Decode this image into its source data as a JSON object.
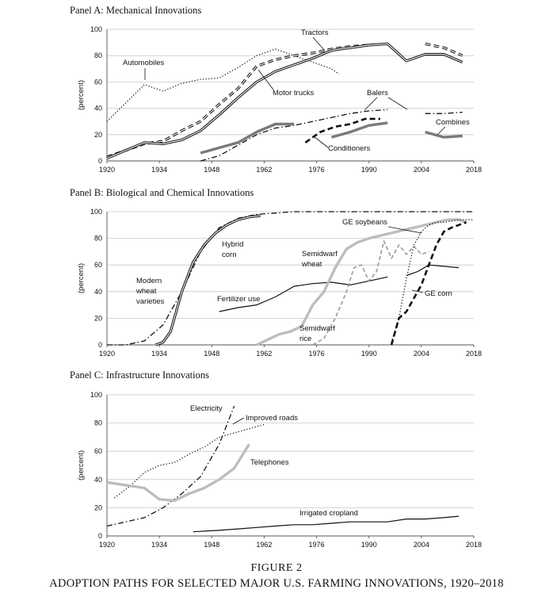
{
  "figure": {
    "label": "FIGURE 2",
    "title": "ADOPTION PATHS FOR SELECTED MAJOR U.S. FARMING INNOVATIONS, 1920–2018"
  },
  "colors": {
    "dark": "#111111",
    "gray": "#7a7a7a",
    "lightgray": "#bdbdbd",
    "midgray": "#9a9a9a"
  },
  "chart_data": [
    {
      "type": "line",
      "title": "Panel A: Mechanical Innovations",
      "ylabel": "(percent)",
      "xlim": [
        1920,
        2018
      ],
      "ylim": [
        0,
        100
      ],
      "xticks": [
        1920,
        1934,
        1948,
        1962,
        1976,
        1990,
        2004,
        2018
      ],
      "yticks": [
        0,
        20,
        40,
        60,
        80,
        100
      ],
      "grid": true,
      "series": [
        {
          "name": "Automobiles",
          "style": "dotted",
          "color": "#111111",
          "x": [
            1920,
            1930,
            1935,
            1940,
            1945,
            1950,
            1955,
            1960,
            1965,
            1970,
            1975,
            1980,
            1982
          ],
          "y": [
            30,
            58,
            53,
            59,
            62,
            63,
            71,
            80,
            85,
            80,
            75,
            70,
            66
          ]
        },
        {
          "name": "Tractors",
          "style": "double-dashed",
          "color": "#111111",
          "x": [
            1920,
            1925,
            1930,
            1935,
            1940,
            1945,
            1950,
            1955,
            1960,
            1965,
            1970,
            1975,
            1980,
            1985,
            1990,
            1995,
            2000,
            2005,
            2010,
            2015
          ],
          "y": [
            3,
            8,
            13,
            15,
            23,
            30,
            43,
            55,
            72,
            77,
            80,
            82,
            85,
            87,
            88,
            null,
            null,
            89,
            86,
            80
          ]
        },
        {
          "name": "Motor trucks",
          "style": "double",
          "color": "#111111",
          "x": [
            1920,
            1925,
            1930,
            1935,
            1940,
            1945,
            1950,
            1955,
            1960,
            1965,
            1970,
            1975,
            1980,
            1985,
            1990,
            1995,
            2000,
            2005,
            2010,
            2015
          ],
          "y": [
            2,
            8,
            14,
            13,
            16,
            23,
            35,
            48,
            60,
            68,
            73,
            78,
            84,
            86,
            88,
            89,
            76,
            81,
            81,
            75
          ]
        },
        {
          "name": "Balers",
          "style": "dashdot",
          "color": "#111111",
          "x": [
            1945,
            1950,
            1955,
            1960,
            1965,
            1970,
            1975,
            1980,
            1985,
            1990,
            1995,
            2000,
            2005,
            2010,
            2015
          ],
          "y": [
            0,
            4,
            12,
            20,
            25,
            27,
            30,
            33,
            36,
            38,
            39,
            null,
            36,
            36,
            37
          ]
        },
        {
          "name": "Combines",
          "style": "thick",
          "color": "#7a7a7a",
          "x": [
            1945,
            1950,
            1955,
            1960,
            1965,
            1970,
            1975,
            1980,
            1985,
            1990,
            1995,
            2000,
            2005,
            2010,
            2015
          ],
          "y": [
            6,
            10,
            14,
            22,
            28,
            28,
            null,
            18,
            22,
            27,
            29,
            null,
            22,
            18,
            19
          ]
        },
        {
          "name": "Conditioners",
          "style": "dashed-thick",
          "color": "#111111",
          "x": [
            1973,
            1977,
            1981,
            1985,
            1989,
            1993
          ],
          "y": [
            14,
            22,
            26,
            28,
            32,
            32
          ]
        }
      ],
      "annotations": [
        "Tractors",
        "Automobiles",
        "Motor trucks",
        "Balers",
        "Combines",
        "Conditioners"
      ]
    },
    {
      "type": "line",
      "title": "Panel B: Biological and Chemical Innovations",
      "ylabel": "(percent)",
      "xlim": [
        1920,
        2018
      ],
      "ylim": [
        0,
        100
      ],
      "xticks": [
        1920,
        1934,
        1948,
        1962,
        1976,
        1990,
        2004,
        2018
      ],
      "yticks": [
        0,
        20,
        40,
        60,
        80,
        100
      ],
      "grid": true,
      "series": [
        {
          "name": "Modern wheat varieties",
          "style": "dashdot",
          "color": "#111111",
          "x": [
            1920,
            1925,
            1930,
            1935,
            1940,
            1945,
            1950,
            1955,
            1960,
            1965,
            1970,
            1980,
            1990,
            2000,
            2010,
            2018
          ],
          "y": [
            0,
            0,
            3,
            15,
            40,
            70,
            88,
            95,
            98,
            99,
            100,
            100,
            100,
            100,
            100,
            100
          ]
        },
        {
          "name": "Hybrid corn",
          "style": "double",
          "color": "#111111",
          "x": [
            1933,
            1935,
            1937,
            1940,
            1943,
            1946,
            1949,
            1952,
            1955,
            1958,
            1961
          ],
          "y": [
            0,
            2,
            10,
            40,
            62,
            75,
            84,
            90,
            94,
            96,
            97
          ]
        },
        {
          "name": "Fertilizer use",
          "style": "solid",
          "color": "#111111",
          "x": [
            1950,
            1955,
            1960,
            1965,
            1970,
            1975,
            1980,
            1985,
            1990,
            1995
          ],
          "y": [
            25,
            28,
            30,
            36,
            44,
            46,
            47,
            45,
            48,
            51
          ]
        },
        {
          "name": "Semidwarf wheat",
          "style": "thick",
          "color": "#bdbdbd",
          "x": [
            1960,
            1963,
            1966,
            1969,
            1972,
            1975,
            1978,
            1981,
            1984,
            1987,
            1990,
            1993,
            1996,
            1999,
            2002,
            2005,
            2008,
            2011,
            2014,
            2016
          ],
          "y": [
            0,
            4,
            8,
            10,
            14,
            30,
            40,
            58,
            72,
            77,
            80,
            82,
            84,
            86,
            88,
            90,
            92,
            94,
            94,
            92
          ]
        },
        {
          "name": "Semidwarf rice",
          "style": "dashed",
          "color": "#9a9a9a",
          "x": [
            1975,
            1978,
            1981,
            1984,
            1986,
            1988,
            1990,
            1992,
            1994,
            1996,
            1998,
            2000,
            2002,
            2004,
            2006
          ],
          "y": [
            0,
            5,
            20,
            40,
            58,
            60,
            48,
            55,
            78,
            65,
            75,
            68,
            74,
            68,
            70
          ]
        },
        {
          "name": "GE soybeans",
          "style": "dotted",
          "color": "#111111",
          "x": [
            1996,
            1998,
            2000,
            2002,
            2004,
            2006,
            2008,
            2010,
            2012,
            2014,
            2016,
            2018
          ],
          "y": [
            2,
            20,
            50,
            75,
            85,
            90,
            92,
            92,
            93,
            94,
            94,
            94
          ]
        },
        {
          "name": "GE corn",
          "style": "dashed-thick",
          "color": "#111111",
          "x": [
            1996,
            1998,
            2000,
            2002,
            2004,
            2006,
            2008,
            2010,
            2012,
            2014,
            2016
          ],
          "y": [
            0,
            20,
            25,
            35,
            45,
            60,
            75,
            85,
            88,
            90,
            92
          ]
        },
        {
          "name": "",
          "style": "solid",
          "color": "#111111",
          "x": [
            2000,
            2003,
            2006,
            2010,
            2014
          ],
          "y": [
            52,
            55,
            60,
            59,
            58
          ]
        }
      ],
      "annotations": [
        "GE soybeans",
        "Hybrid corn",
        "Semidwarf wheat",
        "Modern wheat varieties",
        "Fertilizer use",
        "GE corn",
        "Semidwarf rice"
      ]
    },
    {
      "type": "line",
      "title": "Panel C: Infrastructure Innovations",
      "ylabel": "(percent)",
      "xlim": [
        1920,
        2018
      ],
      "ylim": [
        0,
        100
      ],
      "xticks": [
        1920,
        1934,
        1948,
        1962,
        1976,
        1990,
        2004,
        2018
      ],
      "yticks": [
        0,
        20,
        40,
        60,
        80,
        100
      ],
      "grid": true,
      "series": [
        {
          "name": "Electricity",
          "style": "dashdot",
          "color": "#111111",
          "x": [
            1920,
            1925,
            1930,
            1935,
            1940,
            1945,
            1950,
            1954
          ],
          "y": [
            7,
            10,
            13,
            20,
            30,
            42,
            65,
            92
          ]
        },
        {
          "name": "Improved roads",
          "style": "dotted",
          "color": "#111111",
          "x": [
            1922,
            1926,
            1930,
            1934,
            1938,
            1942,
            1946,
            1950,
            1954,
            1958,
            1962
          ],
          "y": [
            27,
            35,
            45,
            50,
            52,
            58,
            63,
            70,
            73,
            76,
            79
          ]
        },
        {
          "name": "Telephones",
          "style": "thick",
          "color": "#bdbdbd",
          "x": [
            1920,
            1925,
            1930,
            1934,
            1938,
            1942,
            1946,
            1950,
            1954,
            1958
          ],
          "y": [
            38,
            36,
            34,
            26,
            25,
            30,
            34,
            40,
            48,
            65
          ]
        },
        {
          "name": "Irrigated cropland",
          "style": "solid",
          "color": "#111111",
          "x": [
            1943,
            1950,
            1955,
            1960,
            1965,
            1970,
            1975,
            1980,
            1985,
            1990,
            1995,
            2000,
            2005,
            2010,
            2014
          ],
          "y": [
            3,
            4,
            5,
            6,
            7,
            8,
            8,
            9,
            10,
            10,
            10,
            12,
            12,
            13,
            14
          ]
        }
      ],
      "annotations": [
        "Electricity",
        "Improved roads",
        "Telephones",
        "Irrigated cropland"
      ]
    }
  ]
}
